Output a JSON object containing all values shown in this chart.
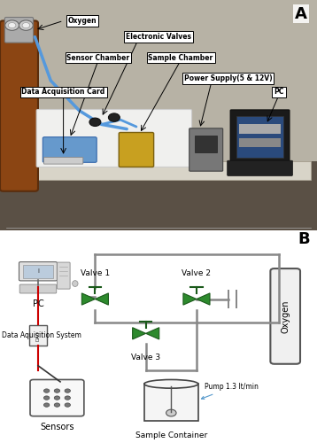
{
  "fig_width": 3.58,
  "fig_height": 5.0,
  "dpi": 100,
  "bg_color": "#ffffff",
  "panel_A_label": "A",
  "panel_B_label": "B",
  "schematic": {
    "valve_color": "#2d8a2d",
    "valve_edge_color": "#1a5a1a",
    "line_color": "#888888",
    "red_line_color": "#cc0000",
    "pump_text": "Pump 1.3 lt/min",
    "oxygen_text": "Oxygen",
    "sample_text": "Sample Container",
    "sensors_text": "Sensors",
    "pc_text": "PC",
    "daq_text": "Data Aquisition System",
    "valve1_text": "Valve 1",
    "valve2_text": "Valve 2",
    "valve3_text": "Valve 3"
  }
}
